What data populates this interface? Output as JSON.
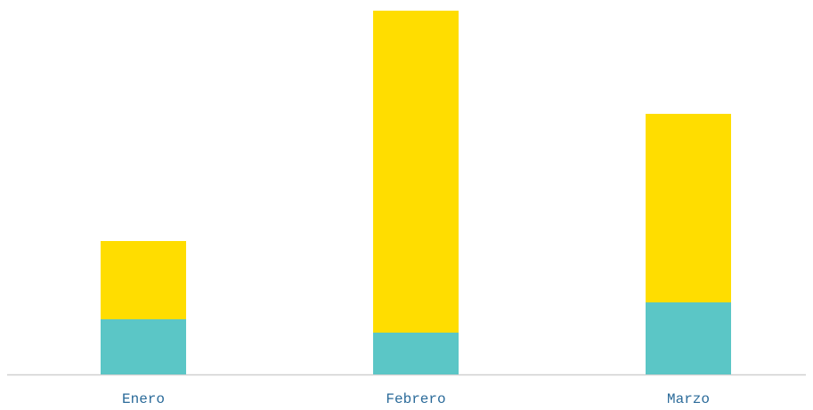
{
  "chart_data": {
    "type": "stacked_bar",
    "categories": [
      "Enero",
      "Febrero",
      "Marzo"
    ],
    "series": [
      {
        "color": "#5bc6c6",
        "values": [
          62,
          47,
          81
        ]
      },
      {
        "color": "#ffdd00",
        "values": [
          88,
          362,
          212
        ]
      }
    ],
    "ylim": [
      0,
      409
    ]
  }
}
